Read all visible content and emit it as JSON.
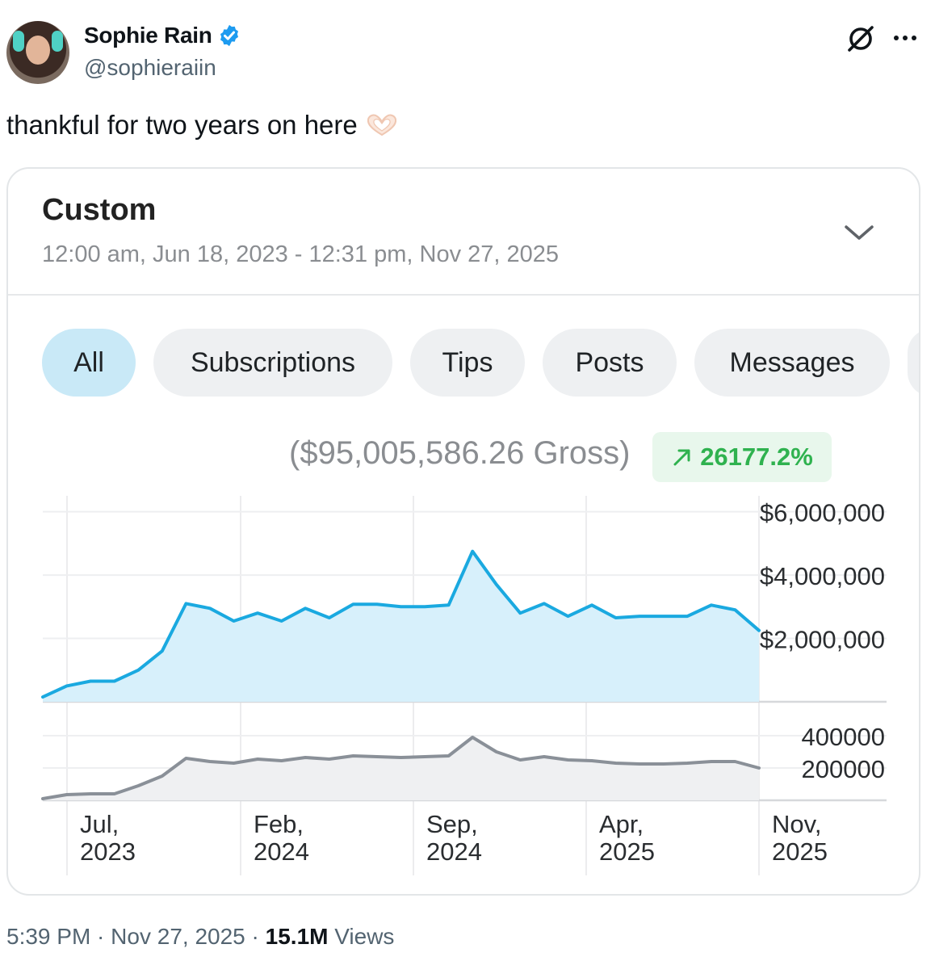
{
  "author": {
    "name": "Sophie Rain",
    "handle": "@sophieraiin",
    "verified": true
  },
  "tweet": {
    "text": "thankful for two years on here",
    "emoji_icon": "heart-hands-emoji"
  },
  "card": {
    "range_title": "Custom",
    "range_subtitle": "12:00 am, Jun 18, 2023 - 12:31 pm, Nov 27, 2025",
    "tabs": [
      "All",
      "Subscriptions",
      "Tips",
      "Posts",
      "Messages"
    ],
    "active_tab": "All",
    "gross": "($95,005,586.26 Gross)",
    "change": "26177.2%",
    "change_color": "#2fb24f"
  },
  "chart_data": {
    "type": "area",
    "x_ticks": [
      "Jul, 2023",
      "Feb, 2024",
      "Sep, 2024",
      "Apr, 2025",
      "Nov, 2025"
    ],
    "upper": {
      "series_color": "#1aa9e0",
      "y_ticks": [
        "$6,000,000",
        "$4,000,000",
        "$2,000,000"
      ],
      "ylim": [
        0,
        6500000
      ],
      "values": [
        150000,
        500000,
        650000,
        650000,
        1000000,
        1600000,
        3100000,
        2950000,
        2550000,
        2800000,
        2550000,
        2950000,
        2650000,
        3080000,
        3080000,
        3000000,
        3000000,
        3050000,
        4750000,
        3700000,
        2800000,
        3100000,
        2700000,
        3050000,
        2650000,
        2700000,
        2700000,
        2700000,
        3050000,
        2900000,
        2250000
      ]
    },
    "lower": {
      "series_color": "#8a9098",
      "y_ticks": [
        "400000",
        "200000"
      ],
      "ylim": [
        0,
        500000
      ],
      "values": [
        10000,
        35000,
        40000,
        40000,
        90000,
        150000,
        260000,
        240000,
        230000,
        255000,
        245000,
        265000,
        255000,
        275000,
        270000,
        265000,
        270000,
        275000,
        390000,
        300000,
        250000,
        270000,
        250000,
        245000,
        230000,
        225000,
        225000,
        230000,
        240000,
        240000,
        200000
      ]
    }
  },
  "footer": {
    "time": "5:39 PM",
    "date": "Nov 27, 2025",
    "views_count": "15.1M",
    "views_label": "Views"
  }
}
